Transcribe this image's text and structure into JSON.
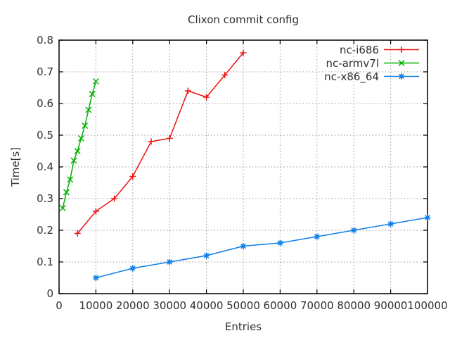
{
  "chart_data": {
    "type": "line",
    "title": "Clixon commit config",
    "xlabel": "Entries",
    "ylabel": "Time[s]",
    "xlim": [
      0,
      100000
    ],
    "ylim": [
      0,
      0.8
    ],
    "grid": true,
    "legend_position": "top-right-inside",
    "background_color": "#ffffff",
    "border_color": "#000000",
    "grid_color": "#989898",
    "text_color": "#303030",
    "x_ticks": [
      0,
      10000,
      20000,
      30000,
      40000,
      50000,
      60000,
      70000,
      80000,
      90000,
      100000
    ],
    "x_tick_labels": [
      "0",
      "10000",
      "20000",
      "30000",
      "40000",
      "50000",
      "60000",
      "70000",
      "80000",
      "90000",
      "100000"
    ],
    "y_ticks": [
      0,
      0.1,
      0.2,
      0.3,
      0.4,
      0.5,
      0.6,
      0.7,
      0.8
    ],
    "y_tick_labels": [
      "0",
      "0.1",
      "0.2",
      "0.3",
      "0.4",
      "0.5",
      "0.6",
      "0.7",
      "0.8"
    ],
    "series": [
      {
        "name": "nc-i686",
        "color": "#ee1111",
        "marker": "plus",
        "x": [
          5000,
          10000,
          15000,
          20000,
          25000,
          30000,
          35000,
          40000,
          45000,
          50000
        ],
        "y": [
          0.19,
          0.26,
          0.3,
          0.37,
          0.48,
          0.49,
          0.64,
          0.62,
          0.69,
          0.76
        ]
      },
      {
        "name": "nc-armv7l",
        "color": "#00b000",
        "marker": "cross",
        "x": [
          1000,
          2000,
          3000,
          4000,
          5000,
          6000,
          7000,
          8000,
          9000,
          10000
        ],
        "y": [
          0.27,
          0.32,
          0.36,
          0.42,
          0.45,
          0.49,
          0.53,
          0.58,
          0.63,
          0.67
        ]
      },
      {
        "name": "nc-x86_64",
        "color": "#0f7fe8",
        "marker": "asterisk",
        "x": [
          10000,
          20000,
          30000,
          40000,
          50000,
          60000,
          70000,
          80000,
          90000,
          100000
        ],
        "y": [
          0.05,
          0.08,
          0.1,
          0.12,
          0.15,
          0.16,
          0.18,
          0.2,
          0.22,
          0.24
        ]
      }
    ]
  }
}
